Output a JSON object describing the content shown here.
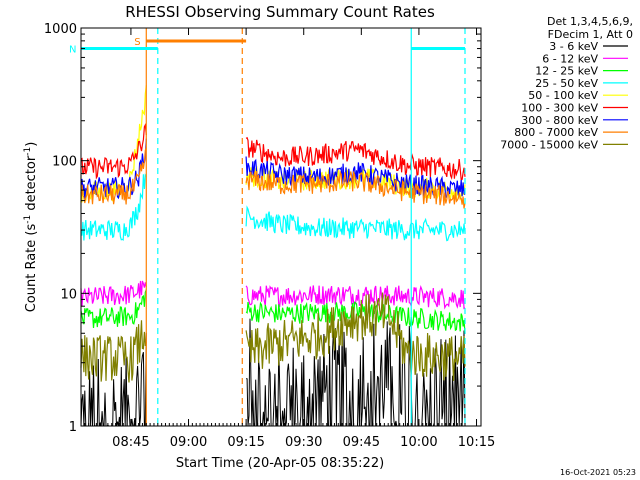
{
  "chart_data": {
    "type": "line",
    "title": "RHESSI Observing Summary Count Rates",
    "xlabel": "Start Time (20-Apr-05 08:35:22)",
    "ylabel_prefix": "Count Rate (s",
    "ylabel_exp1": "-1",
    "ylabel_mid": " detector",
    "ylabel_exp2": "-1",
    "ylabel_suffix": ")",
    "y_scale": "log",
    "ylim": [
      1,
      1000
    ],
    "xlim_minutes": [
      0,
      100
    ],
    "x_ticks": [
      {
        "minutes": 13,
        "label": "08:45"
      },
      {
        "minutes": 28,
        "label": "09:00"
      },
      {
        "minutes": 43,
        "label": "09:15"
      },
      {
        "minutes": 58,
        "label": "09:30"
      },
      {
        "minutes": 73,
        "label": "09:45"
      },
      {
        "minutes": 88,
        "label": "10:00"
      },
      {
        "minutes": 103,
        "label": "10:15"
      }
    ],
    "y_ticks": [
      {
        "value": 1,
        "label": "1"
      },
      {
        "value": 10,
        "label": "10"
      },
      {
        "value": 100,
        "label": "100"
      },
      {
        "value": 1000,
        "label": "1000"
      }
    ],
    "legend_header": [
      "Det 1,3,4,5,6,9,",
      "FDecim 1, Att 0"
    ],
    "series": [
      {
        "name": "3 - 6 keV",
        "color": "#000000",
        "points": [
          [
            0,
            1.2
          ],
          [
            13,
            1.2
          ],
          [
            15,
            1.6
          ],
          [
            17,
            3.5
          ],
          [
            18,
            3.2
          ],
          [
            43,
            3.3
          ],
          [
            45,
            1.8
          ],
          [
            52,
            1.6
          ],
          [
            62,
            1.8
          ],
          [
            75,
            2.5
          ],
          [
            85,
            2.2
          ],
          [
            100,
            1.9
          ]
        ]
      },
      {
        "name": "6 - 12 keV",
        "color": "#ff00ff",
        "points": [
          [
            0,
            9.2
          ],
          [
            13,
            9.8
          ],
          [
            15,
            10.5
          ],
          [
            17,
            11
          ],
          [
            43,
            9.6
          ],
          [
            52,
            9.6
          ],
          [
            62,
            9.8
          ],
          [
            75,
            9.8
          ],
          [
            85,
            9.5
          ],
          [
            100,
            9.2
          ]
        ]
      },
      {
        "name": "12 - 25 keV",
        "color": "#00ff00",
        "points": [
          [
            0,
            6.4
          ],
          [
            13,
            6.7
          ],
          [
            15,
            7.5
          ],
          [
            17,
            10
          ],
          [
            43,
            7.4
          ],
          [
            52,
            7.0
          ],
          [
            62,
            7.2
          ],
          [
            75,
            7.2
          ],
          [
            85,
            6.6
          ],
          [
            100,
            6.0
          ]
        ]
      },
      {
        "name": "25 - 50 keV",
        "color": "#00ffff",
        "points": [
          [
            0,
            30
          ],
          [
            11,
            30
          ],
          [
            13,
            33
          ],
          [
            15,
            45
          ],
          [
            17,
            85
          ],
          [
            43,
            38
          ],
          [
            52,
            33
          ],
          [
            62,
            31
          ],
          [
            75,
            31
          ],
          [
            85,
            30
          ],
          [
            100,
            30
          ]
        ]
      },
      {
        "name": "50 - 100 keV",
        "color": "#ffff00",
        "points": [
          [
            0,
            58
          ],
          [
            11,
            60
          ],
          [
            13,
            75
          ],
          [
            15,
            150
          ],
          [
            17,
            320
          ],
          [
            43,
            78
          ],
          [
            52,
            70
          ],
          [
            62,
            72
          ],
          [
            75,
            74
          ],
          [
            85,
            63
          ],
          [
            100,
            60
          ]
        ]
      },
      {
        "name": "100 - 300 keV",
        "color": "#ff0000",
        "points": [
          [
            0,
            88
          ],
          [
            11,
            90
          ],
          [
            13,
            95
          ],
          [
            15,
            120
          ],
          [
            17,
            170
          ],
          [
            43,
            128
          ],
          [
            52,
            105
          ],
          [
            62,
            110
          ],
          [
            72,
            122
          ],
          [
            85,
            92
          ],
          [
            100,
            85
          ]
        ]
      },
      {
        "name": "300 - 800 keV",
        "color": "#0000ff",
        "points": [
          [
            0,
            62
          ],
          [
            11,
            63
          ],
          [
            13,
            65
          ],
          [
            15,
            75
          ],
          [
            17,
            135
          ],
          [
            43,
            90
          ],
          [
            52,
            78
          ],
          [
            62,
            75
          ],
          [
            72,
            82
          ],
          [
            85,
            66
          ],
          [
            100,
            60
          ]
        ]
      },
      {
        "name": "800 - 7000 keV",
        "color": "#ff7f00",
        "points": [
          [
            0,
            55
          ],
          [
            11,
            55
          ],
          [
            13,
            58
          ],
          [
            15,
            70
          ],
          [
            17,
            110
          ],
          [
            43,
            72
          ],
          [
            52,
            66
          ],
          [
            62,
            67
          ],
          [
            72,
            70
          ],
          [
            85,
            58
          ],
          [
            100,
            52
          ]
        ]
      },
      {
        "name": "7000 - 15000 keV",
        "color": "#808000",
        "points": [
          [
            0,
            3.3
          ],
          [
            13,
            3.2
          ],
          [
            15,
            4
          ],
          [
            17,
            5.5
          ],
          [
            43,
            3.5
          ],
          [
            52,
            4.2
          ],
          [
            62,
            4.8
          ],
          [
            70,
            6.5
          ],
          [
            80,
            6.8
          ],
          [
            85,
            3.5
          ],
          [
            100,
            3.2
          ]
        ]
      }
    ],
    "gaps": [
      {
        "from": 17,
        "to": 43
      }
    ],
    "flags": [
      {
        "label": "S",
        "color": "#ff7f00",
        "label_color": "#ff7f00",
        "start": 17,
        "end": 43,
        "level": 1000
      },
      {
        "label": "N",
        "color": "#00ffff",
        "label_color": "#00ffff",
        "start": 0,
        "end": 20,
        "level": 700
      },
      {
        "label": "",
        "color": "#00ffff",
        "label_color": "#00ffff",
        "start": 86,
        "end": 100,
        "level": 700
      }
    ],
    "vlines": [
      {
        "x": 17,
        "color": "#ff7f00",
        "style": "solid"
      },
      {
        "x": 20,
        "color": "#00ffff",
        "style": "dashed"
      },
      {
        "x": 42,
        "color": "#ff7f00",
        "style": "dashed"
      },
      {
        "x": 86,
        "color": "#00ffff",
        "style": "solid"
      },
      {
        "x": 100,
        "color": "#00ffff",
        "style": "dashed"
      }
    ],
    "grid": false,
    "legend_position": "right"
  },
  "timestamp": "16-Oct-2021 05:23"
}
